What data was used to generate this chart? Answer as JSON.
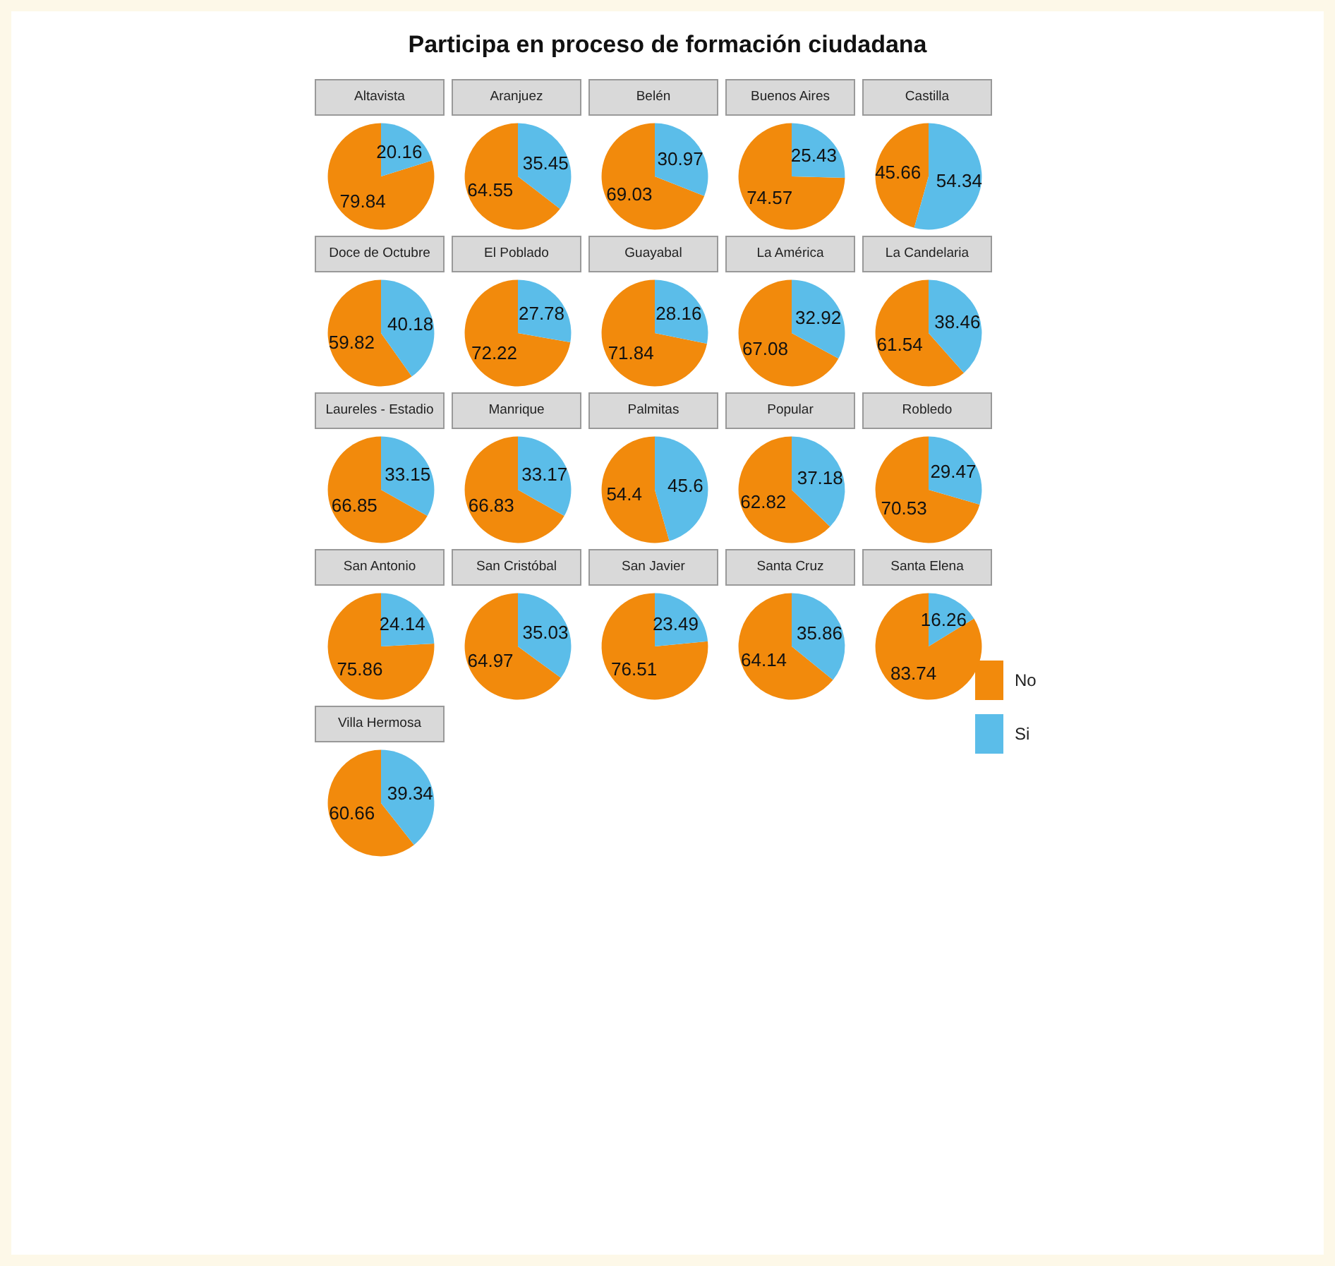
{
  "chart_data": [
    {
      "type": "pie",
      "title": "Participa en proceso de formación ciudadana",
      "subtitle": "Altavista",
      "categories": [
        "No",
        "Si"
      ],
      "values": [
        79.84,
        20.16
      ],
      "colors": [
        "#f28a0c",
        "#5bbde9"
      ],
      "data_labels": true,
      "legend": "right"
    },
    {
      "type": "pie",
      "subtitle": "Aranjuez",
      "categories": [
        null,
        null
      ],
      "values": [
        64.55,
        35.45
      ],
      "colors": [
        "#f28a0c",
        "#5bbde9"
      ],
      "data_labels": true
    },
    {
      "type": "pie",
      "subtitle": "Belén",
      "categories": [
        null,
        null
      ],
      "values": [
        69.03,
        30.97
      ],
      "colors": [
        "#f28a0c",
        "#5bbde9"
      ],
      "data_labels": true
    },
    {
      "type": "pie",
      "subtitle": "Buenos Aires",
      "categories": [
        null,
        null
      ],
      "values": [
        74.57,
        25.43
      ],
      "colors": [
        "#f28a0c",
        "#5bbde9"
      ],
      "data_labels": true
    },
    {
      "type": "pie",
      "subtitle": "Castilla",
      "categories": [
        null,
        null
      ],
      "values": [
        45.66,
        54.34
      ],
      "colors": [
        "#f28a0c",
        "#5bbde9"
      ],
      "data_labels": true
    },
    {
      "type": "pie",
      "subtitle": "Doce de Octubre",
      "categories": [
        null,
        null
      ],
      "values": [
        59.82,
        40.18
      ],
      "colors": [
        "#f28a0c",
        "#5bbde9"
      ],
      "data_labels": true
    },
    {
      "type": "pie",
      "subtitle": "El Poblado",
      "categories": [
        null,
        null
      ],
      "values": [
        72.22,
        27.78
      ],
      "colors": [
        "#f28a0c",
        "#5bbde9"
      ],
      "data_labels": true
    },
    {
      "type": "pie",
      "subtitle": "Guayabal",
      "categories": [
        null,
        null
      ],
      "values": [
        71.84,
        28.16
      ],
      "colors": [
        "#f28a0c",
        "#5bbde9"
      ],
      "data_labels": true
    },
    {
      "type": "pie",
      "subtitle": "La América",
      "categories": [
        null,
        null
      ],
      "values": [
        67.08,
        32.92
      ],
      "colors": [
        "#f28a0c",
        "#5bbde9"
      ],
      "data_labels": true
    },
    {
      "type": "pie",
      "subtitle": "La Candelaria",
      "categories": [
        null,
        null
      ],
      "values": [
        61.54,
        38.46
      ],
      "colors": [
        "#f28a0c",
        "#5bbde9"
      ],
      "data_labels": true
    },
    {
      "type": "pie",
      "subtitle": "Laureles - Estadio",
      "categories": [
        null,
        null
      ],
      "values": [
        66.85,
        33.15
      ],
      "colors": [
        "#f28a0c",
        "#5bbde9"
      ],
      "data_labels": true
    },
    {
      "type": "pie",
      "subtitle": "Manrique",
      "categories": [
        null,
        null
      ],
      "values": [
        66.83,
        33.17
      ],
      "colors": [
        "#f28a0c",
        "#5bbde9"
      ],
      "data_labels": true
    },
    {
      "type": "pie",
      "subtitle": "Palmitas",
      "categories": [
        null,
        null
      ],
      "values": [
        54.4,
        45.6
      ],
      "colors": [
        "#f28a0c",
        "#5bbde9"
      ],
      "data_labels": true
    },
    {
      "type": "pie",
      "subtitle": "Popular",
      "categories": [
        null,
        null
      ],
      "values": [
        62.82,
        37.18
      ],
      "colors": [
        "#f28a0c",
        "#5bbde9"
      ],
      "data_labels": true
    },
    {
      "type": "pie",
      "subtitle": "Robledo",
      "categories": [
        null,
        null
      ],
      "values": [
        70.53,
        29.47
      ],
      "colors": [
        "#f28a0c",
        "#5bbde9"
      ],
      "data_labels": true
    },
    {
      "type": "pie",
      "subtitle": "San Antonio",
      "categories": [
        null,
        null
      ],
      "values": [
        75.86,
        24.14
      ],
      "colors": [
        "#f28a0c",
        "#5bbde9"
      ],
      "data_labels": true
    },
    {
      "type": "pie",
      "subtitle": "San Cristóbal",
      "categories": [
        null,
        null
      ],
      "values": [
        64.97,
        35.03
      ],
      "colors": [
        "#f28a0c",
        "#5bbde9"
      ],
      "data_labels": true
    },
    {
      "type": "pie",
      "subtitle": "San Javier",
      "categories": [
        null,
        null
      ],
      "values": [
        76.51,
        23.49
      ],
      "colors": [
        "#f28a0c",
        "#5bbde9"
      ],
      "data_labels": true
    },
    {
      "type": "pie",
      "subtitle": "Santa Cruz",
      "categories": [
        null,
        null
      ],
      "values": [
        64.14,
        35.86
      ],
      "colors": [
        "#f28a0c",
        "#5bbde9"
      ],
      "data_labels": true
    },
    {
      "type": "pie",
      "subtitle": "Santa Elena",
      "categories": [
        null,
        null
      ],
      "values": [
        83.74,
        16.26
      ],
      "colors": [
        "#f28a0c",
        "#5bbde9"
      ],
      "data_labels": true
    },
    {
      "type": "pie",
      "subtitle": "Villa Hermosa",
      "categories": [
        null,
        null
      ],
      "values": [
        60.66,
        39.34
      ],
      "colors": [
        "#f28a0c",
        "#5bbde9"
      ],
      "data_labels": true
    }
  ]
}
